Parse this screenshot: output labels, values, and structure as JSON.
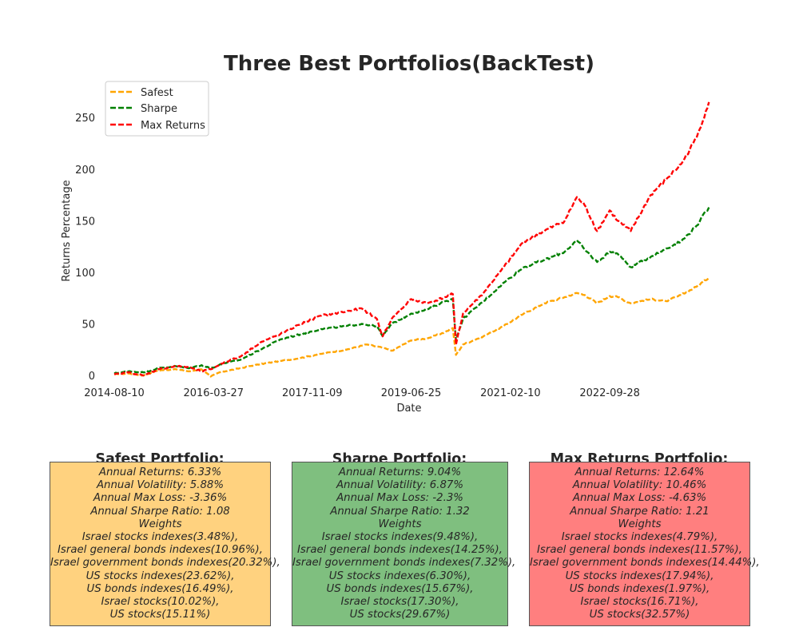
{
  "colors": {
    "safest": "#FFA500",
    "sharpe": "#008000",
    "max_returns": "#FF0000",
    "safest_panel": "#FFD27F",
    "sharpe_panel": "#7FBF7F",
    "max_returns_panel": "#FF7F7F"
  },
  "chart_data": {
    "type": "line",
    "title": "Three Best Portfolios(BackTest)",
    "xlabel": "Date",
    "ylabel": "Returns Percentage",
    "x_tick_labels": [
      "2014-08-10",
      "2016-03-27",
      "2017-11-09",
      "2019-06-25",
      "2021-02-10",
      "2022-09-28"
    ],
    "y_ticks": [
      0,
      50,
      100,
      150,
      200,
      250
    ],
    "ylim": [
      -10,
      285
    ],
    "xlim": [
      "2014-05-01",
      "2024-07-15"
    ],
    "grid": false,
    "legend_position": "upper-left",
    "line_style": "dashed",
    "series": [
      {
        "name": "Safest",
        "color": "#FFA500",
        "points": [
          [
            "2014-08-10",
            1
          ],
          [
            "2014-11-01",
            2
          ],
          [
            "2015-02-01",
            0
          ],
          [
            "2015-05-01",
            5
          ],
          [
            "2015-08-15",
            6
          ],
          [
            "2015-11-01",
            4
          ],
          [
            "2016-01-15",
            6
          ],
          [
            "2016-03-10",
            -1
          ],
          [
            "2016-05-01",
            3
          ],
          [
            "2016-09-01",
            7
          ],
          [
            "2017-01-01",
            11
          ],
          [
            "2017-05-01",
            14
          ],
          [
            "2017-09-01",
            17
          ],
          [
            "2018-01-01",
            21
          ],
          [
            "2018-06-01",
            25
          ],
          [
            "2018-10-01",
            30
          ],
          [
            "2019-01-01",
            27
          ],
          [
            "2019-03-01",
            24
          ],
          [
            "2019-06-25",
            34
          ],
          [
            "2019-10-01",
            36
          ],
          [
            "2020-01-15",
            42
          ],
          [
            "2020-03-01",
            46
          ],
          [
            "2020-03-20",
            20
          ],
          [
            "2020-05-01",
            30
          ],
          [
            "2020-09-01",
            38
          ],
          [
            "2021-01-01",
            48
          ],
          [
            "2021-05-01",
            60
          ],
          [
            "2021-09-01",
            70
          ],
          [
            "2022-01-01",
            76
          ],
          [
            "2022-03-15",
            80
          ],
          [
            "2022-05-01",
            78
          ],
          [
            "2022-07-15",
            70
          ],
          [
            "2022-09-28",
            77
          ],
          [
            "2022-11-15",
            76
          ],
          [
            "2023-02-01",
            70
          ],
          [
            "2023-06-01",
            74
          ],
          [
            "2023-09-01",
            72
          ],
          [
            "2023-12-01",
            78
          ],
          [
            "2024-03-01",
            86
          ],
          [
            "2024-05-15",
            95
          ]
        ]
      },
      {
        "name": "Sharpe",
        "color": "#008000",
        "points": [
          [
            "2014-08-10",
            2
          ],
          [
            "2014-11-01",
            4
          ],
          [
            "2015-02-01",
            3
          ],
          [
            "2015-05-01",
            7
          ],
          [
            "2015-08-15",
            9
          ],
          [
            "2015-11-01",
            7
          ],
          [
            "2016-01-15",
            10
          ],
          [
            "2016-03-10",
            7
          ],
          [
            "2016-06-01",
            12
          ],
          [
            "2016-09-01",
            15
          ],
          [
            "2017-01-01",
            25
          ],
          [
            "2017-05-01",
            35
          ],
          [
            "2017-09-01",
            40
          ],
          [
            "2018-01-01",
            45
          ],
          [
            "2018-06-01",
            48
          ],
          [
            "2018-09-01",
            50
          ],
          [
            "2018-12-01",
            48
          ],
          [
            "2019-01-05",
            38
          ],
          [
            "2019-03-01",
            50
          ],
          [
            "2019-06-25",
            60
          ],
          [
            "2019-10-01",
            64
          ],
          [
            "2020-01-15",
            72
          ],
          [
            "2020-03-01",
            74
          ],
          [
            "2020-03-20",
            34
          ],
          [
            "2020-05-01",
            55
          ],
          [
            "2020-09-01",
            72
          ],
          [
            "2021-01-01",
            90
          ],
          [
            "2021-05-01",
            105
          ],
          [
            "2021-09-01",
            112
          ],
          [
            "2022-01-01",
            120
          ],
          [
            "2022-03-15",
            131
          ],
          [
            "2022-05-01",
            122
          ],
          [
            "2022-07-15",
            110
          ],
          [
            "2022-09-28",
            120
          ],
          [
            "2022-11-15",
            118
          ],
          [
            "2023-02-01",
            105
          ],
          [
            "2023-06-01",
            115
          ],
          [
            "2023-09-01",
            123
          ],
          [
            "2023-12-01",
            130
          ],
          [
            "2024-03-01",
            145
          ],
          [
            "2024-05-15",
            163
          ]
        ]
      },
      {
        "name": "Max Returns",
        "color": "#FF0000",
        "points": [
          [
            "2014-08-10",
            1
          ],
          [
            "2014-11-01",
            3
          ],
          [
            "2015-02-01",
            0
          ],
          [
            "2015-05-01",
            6
          ],
          [
            "2015-08-15",
            9
          ],
          [
            "2015-11-01",
            8
          ],
          [
            "2016-01-15",
            4
          ],
          [
            "2016-03-10",
            6
          ],
          [
            "2016-06-01",
            13
          ],
          [
            "2016-09-01",
            18
          ],
          [
            "2017-01-01",
            32
          ],
          [
            "2017-05-01",
            40
          ],
          [
            "2017-09-01",
            50
          ],
          [
            "2018-01-01",
            58
          ],
          [
            "2018-06-01",
            62
          ],
          [
            "2018-09-01",
            65
          ],
          [
            "2018-12-01",
            55
          ],
          [
            "2019-01-05",
            38
          ],
          [
            "2019-03-01",
            55
          ],
          [
            "2019-06-25",
            74
          ],
          [
            "2019-10-01",
            70
          ],
          [
            "2020-01-15",
            76
          ],
          [
            "2020-03-01",
            79
          ],
          [
            "2020-03-20",
            30
          ],
          [
            "2020-05-01",
            60
          ],
          [
            "2020-09-01",
            80
          ],
          [
            "2021-01-01",
            105
          ],
          [
            "2021-05-01",
            130
          ],
          [
            "2021-09-01",
            140
          ],
          [
            "2022-01-01",
            150
          ],
          [
            "2022-03-15",
            173
          ],
          [
            "2022-05-01",
            165
          ],
          [
            "2022-07-15",
            140
          ],
          [
            "2022-09-28",
            160
          ],
          [
            "2022-11-15",
            150
          ],
          [
            "2023-02-01",
            140
          ],
          [
            "2023-06-01",
            175
          ],
          [
            "2023-09-01",
            190
          ],
          [
            "2023-12-01",
            205
          ],
          [
            "2024-03-01",
            230
          ],
          [
            "2024-05-15",
            265
          ]
        ]
      }
    ]
  },
  "panels": [
    {
      "title": "Safest Portfolio:",
      "lines": [
        "Annual Returns: 6.33%",
        "Annual Volatility: 5.88%",
        "Annual Max Loss: -3.36%",
        "Annual Sharpe Ratio: 1.08",
        "Weights",
        "Israel stocks indexes(3.48%),",
        "Israel general bonds indexes(10.96%),",
        "Israel government bonds indexes(20.32%),",
        "US stocks indexes(23.62%),",
        "US bonds indexes(16.49%),",
        "Israel stocks(10.02%),",
        "US stocks(15.11%)"
      ]
    },
    {
      "title": "Sharpe Portfolio:",
      "lines": [
        "Annual Returns: 9.04%",
        "Annual Volatility: 6.87%",
        "Annual Max Loss: -2.3%",
        "Annual Sharpe Ratio: 1.32",
        "Weights",
        "Israel stocks indexes(9.48%),",
        "Israel general bonds indexes(14.25%),",
        "Israel government bonds indexes(7.32%),",
        "US stocks indexes(6.30%),",
        "US bonds indexes(15.67%),",
        "Israel stocks(17.30%),",
        "US stocks(29.67%)"
      ]
    },
    {
      "title": "Max Returns Portfolio:",
      "lines": [
        "Annual Returns: 12.64%",
        "Annual Volatility: 10.46%",
        "Annual Max Loss: -4.63%",
        "Annual Sharpe Ratio: 1.21",
        "Weights",
        "Israel stocks indexes(4.79%),",
        "Israel general bonds indexes(11.57%),",
        "Israel government bonds indexes(14.44%),",
        "US stocks indexes(17.94%),",
        "US bonds indexes(1.97%),",
        "Israel stocks(16.71%),",
        "US stocks(32.57%)"
      ]
    }
  ]
}
